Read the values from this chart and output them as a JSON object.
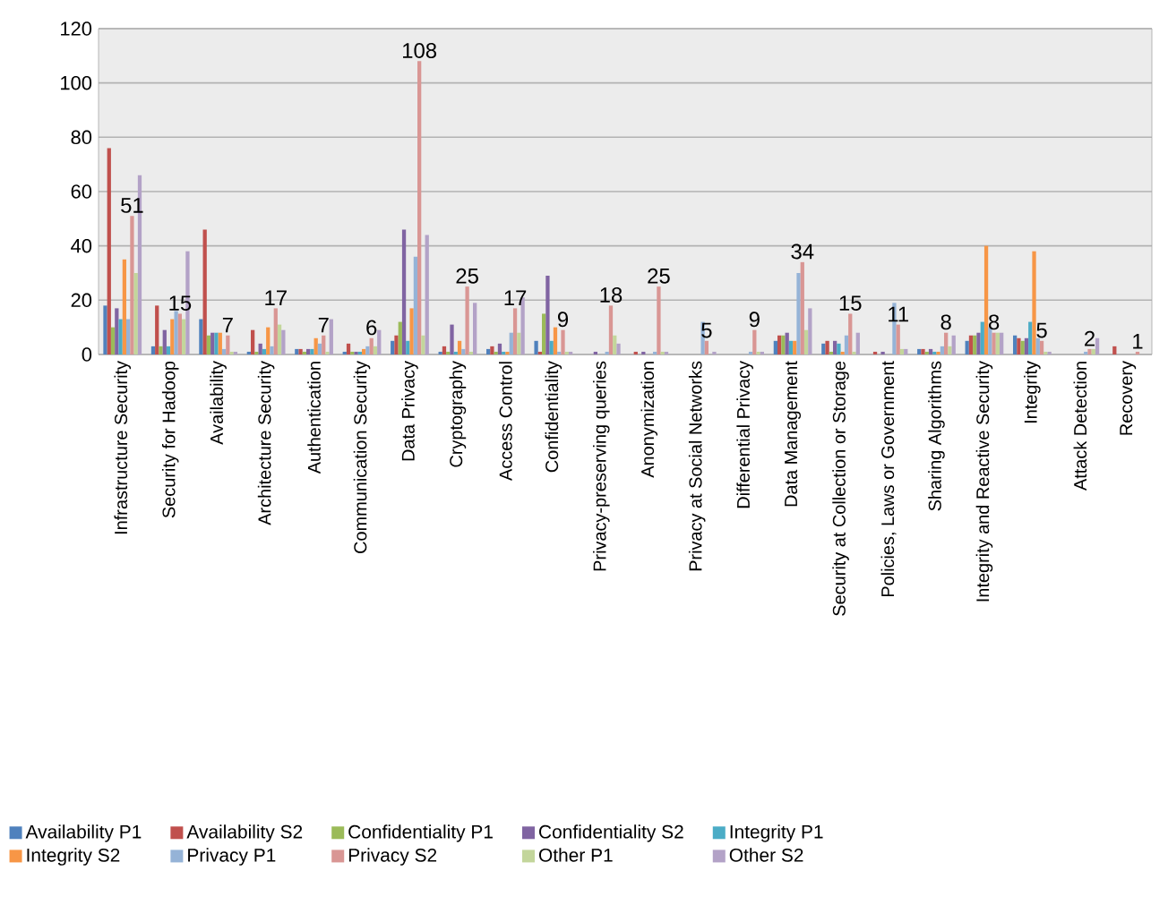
{
  "chart_data": {
    "type": "bar",
    "categories": [
      "Infrastructure Security",
      "Security for Hadoop",
      "Availability",
      "Architecture Security",
      "Authentication",
      "Communication Security",
      "Data Privacy",
      "Cryptography",
      "Access Control",
      "Confidentiality",
      "Privacy-preserving queries",
      "Anonymization",
      "Privacy at Social Networks",
      "Differential Privacy",
      "Data Management",
      "Security at Collection or Storage",
      "Policies, Laws or Government",
      "Sharing Algorithms",
      "Integrity and Reactive Security",
      "Integrity",
      "Attack Detection",
      "Recovery"
    ],
    "series": [
      {
        "name": "Availability P1",
        "color": "#4f81bd",
        "values": [
          18,
          3,
          13,
          1,
          2,
          1,
          5,
          1,
          2,
          5,
          0,
          0,
          0,
          0,
          5,
          4,
          0,
          2,
          5,
          7,
          0,
          0
        ]
      },
      {
        "name": "Availability S2",
        "color": "#c0504d",
        "values": [
          76,
          18,
          46,
          9,
          2,
          4,
          7,
          3,
          3,
          1,
          0,
          1,
          0,
          0,
          7,
          5,
          1,
          2,
          7,
          6,
          0,
          3
        ]
      },
      {
        "name": "Confidentiality P1",
        "color": "#9bbb59",
        "values": [
          10,
          3,
          7,
          1,
          1,
          1,
          12,
          1,
          1,
          15,
          0,
          0,
          0,
          0,
          7,
          1,
          0,
          1,
          7,
          5,
          0,
          0
        ]
      },
      {
        "name": "Confidentiality S2",
        "color": "#8064a2",
        "values": [
          17,
          9,
          8,
          4,
          2,
          1,
          46,
          11,
          4,
          29,
          1,
          1,
          0,
          0,
          8,
          5,
          1,
          2,
          8,
          6,
          0,
          0
        ]
      },
      {
        "name": "Integrity P1",
        "color": "#4bacc6",
        "values": [
          13,
          3,
          8,
          2,
          2,
          1,
          5,
          1,
          1,
          5,
          0,
          0,
          0,
          0,
          5,
          4,
          0,
          1,
          12,
          12,
          0,
          0
        ]
      },
      {
        "name": "Integrity S2",
        "color": "#f79646",
        "values": [
          35,
          13,
          8,
          10,
          6,
          2,
          17,
          5,
          1,
          10,
          0,
          0,
          0,
          0,
          5,
          1,
          0,
          1,
          40,
          38,
          0,
          0
        ]
      },
      {
        "name": "Privacy P1",
        "color": "#95b3d7",
        "values": [
          13,
          16,
          2,
          3,
          4,
          3,
          36,
          2,
          8,
          1,
          1,
          1,
          12,
          1,
          30,
          7,
          19,
          3,
          10,
          6,
          1,
          0
        ]
      },
      {
        "name": "Privacy S2",
        "color": "#d99694",
        "values": [
          51,
          15,
          7,
          17,
          7,
          6,
          108,
          25,
          17,
          9,
          18,
          25,
          5,
          9,
          34,
          15,
          11,
          8,
          8,
          5,
          2,
          1
        ],
        "value_labels": [
          "51",
          "15",
          "7",
          "17",
          "7",
          "6",
          "108",
          "25",
          "17",
          "9",
          "18",
          "25",
          "5",
          "9",
          "34",
          "15",
          "11",
          "8",
          "8",
          "5",
          "2",
          "1"
        ]
      },
      {
        "name": "Other P1",
        "color": "#c3d69b",
        "values": [
          30,
          13,
          1,
          11,
          1,
          3,
          7,
          1,
          8,
          1,
          7,
          1,
          0,
          1,
          9,
          1,
          2,
          3,
          8,
          1,
          2,
          0
        ]
      },
      {
        "name": "Other S2",
        "color": "#b3a2c7",
        "values": [
          66,
          38,
          1,
          9,
          13,
          9,
          44,
          19,
          21,
          1,
          4,
          1,
          1,
          1,
          17,
          8,
          2,
          7,
          8,
          1,
          6,
          0
        ]
      }
    ],
    "ylim": [
      0,
      120
    ],
    "yticks": [
      0,
      20,
      40,
      60,
      80,
      100,
      120
    ],
    "grid": "y",
    "legend": "bottom"
  }
}
